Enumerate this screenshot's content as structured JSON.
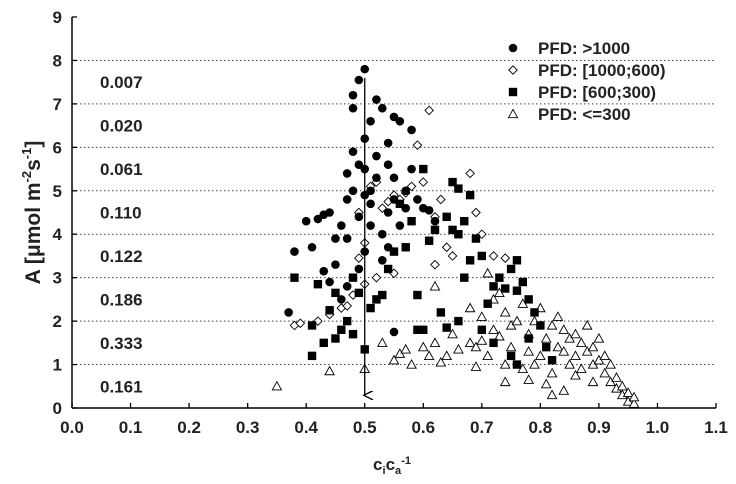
{
  "chart_data": {
    "type": "scatter",
    "title": "",
    "xlabel": {
      "base": "c",
      "sub1": "i",
      "mid": "c",
      "sub2": "a",
      "sup": "-1"
    },
    "ylabel": {
      "main": "A [μmol m",
      "sup1": "-2",
      "mid": "s",
      "sup2": "-1",
      "end": "]"
    },
    "xlim": [
      0.0,
      1.1
    ],
    "ylim": [
      0,
      9
    ],
    "x_ticks": [
      "0.0",
      "0.1",
      "0.2",
      "0.3",
      "0.4",
      "0.5",
      "0.6",
      "0.7",
      "0.8",
      "0.9",
      "1.0",
      "1.1"
    ],
    "y_ticks": [
      "0",
      "1",
      "2",
      "3",
      "4",
      "5",
      "6",
      "7",
      "8",
      "9"
    ],
    "grid": "horizontal dotted",
    "legend_position": "top-right",
    "band_labels": [
      {
        "y": 7.5,
        "text": "0.007"
      },
      {
        "y": 6.5,
        "text": "0.020"
      },
      {
        "y": 5.5,
        "text": "0.061"
      },
      {
        "y": 4.5,
        "text": "0.110"
      },
      {
        "y": 3.5,
        "text": "0.122"
      },
      {
        "y": 2.5,
        "text": "0.186"
      },
      {
        "y": 1.5,
        "text": "0.333"
      },
      {
        "y": 0.5,
        "text": "0.161"
      }
    ],
    "arrow": {
      "x": 0.5,
      "from_y": 7.6,
      "to_y": 0.2
    },
    "series": [
      {
        "name": "PFD: >1000",
        "marker": "filled-circle",
        "points": [
          [
            0.37,
            2.2
          ],
          [
            0.38,
            3.6
          ],
          [
            0.4,
            4.3
          ],
          [
            0.41,
            3.7
          ],
          [
            0.42,
            4.35
          ],
          [
            0.43,
            4.45
          ],
          [
            0.43,
            3.15
          ],
          [
            0.44,
            2.9
          ],
          [
            0.44,
            4.5
          ],
          [
            0.45,
            3.9
          ],
          [
            0.45,
            3.3
          ],
          [
            0.46,
            4.2
          ],
          [
            0.46,
            2.5
          ],
          [
            0.47,
            4.8
          ],
          [
            0.47,
            3.9
          ],
          [
            0.47,
            2.8
          ],
          [
            0.47,
            5.4
          ],
          [
            0.48,
            5.9
          ],
          [
            0.48,
            5.0
          ],
          [
            0.48,
            7.2
          ],
          [
            0.48,
            6.9
          ],
          [
            0.49,
            5.6
          ],
          [
            0.49,
            4.4
          ],
          [
            0.49,
            3.2
          ],
          [
            0.49,
            7.55
          ],
          [
            0.5,
            7.8
          ],
          [
            0.5,
            6.2
          ],
          [
            0.5,
            5.5
          ],
          [
            0.5,
            4.9
          ],
          [
            0.5,
            3.6
          ],
          [
            0.51,
            5.0
          ],
          [
            0.51,
            6.6
          ],
          [
            0.51,
            4.7
          ],
          [
            0.51,
            4.2
          ],
          [
            0.52,
            7.1
          ],
          [
            0.52,
            5.3
          ],
          [
            0.52,
            5.8
          ],
          [
            0.53,
            6.9
          ],
          [
            0.53,
            4.0
          ],
          [
            0.53,
            3.4
          ],
          [
            0.54,
            6.1
          ],
          [
            0.54,
            5.6
          ],
          [
            0.54,
            4.5
          ],
          [
            0.54,
            3.7
          ],
          [
            0.55,
            6.7
          ],
          [
            0.55,
            5.3
          ],
          [
            0.55,
            4.8
          ],
          [
            0.56,
            6.6
          ],
          [
            0.56,
            4.2
          ],
          [
            0.57,
            5.0
          ],
          [
            0.57,
            4.6
          ],
          [
            0.58,
            6.4
          ],
          [
            0.58,
            5.5
          ],
          [
            0.59,
            4.8
          ],
          [
            0.6,
            4.6
          ],
          [
            0.61,
            4.55
          ],
          [
            0.62,
            4.3
          ],
          [
            0.55,
            1.75
          ]
        ]
      },
      {
        "name": "PFD: [1000;600)",
        "marker": "open-diamond",
        "points": [
          [
            0.38,
            1.9
          ],
          [
            0.39,
            1.95
          ],
          [
            0.42,
            2.0
          ],
          [
            0.44,
            2.15
          ],
          [
            0.46,
            2.3
          ],
          [
            0.47,
            2.35
          ],
          [
            0.48,
            2.6
          ],
          [
            0.49,
            3.45
          ],
          [
            0.49,
            4.5
          ],
          [
            0.5,
            3.8
          ],
          [
            0.51,
            5.1
          ],
          [
            0.52,
            5.2
          ],
          [
            0.53,
            4.6
          ],
          [
            0.54,
            4.75
          ],
          [
            0.55,
            4.9
          ],
          [
            0.56,
            4.8
          ],
          [
            0.57,
            4.95
          ],
          [
            0.58,
            5.1
          ],
          [
            0.59,
            6.05
          ],
          [
            0.6,
            5.2
          ],
          [
            0.61,
            6.85
          ],
          [
            0.62,
            4.4
          ],
          [
            0.62,
            3.3
          ],
          [
            0.63,
            4.8
          ],
          [
            0.64,
            3.7
          ],
          [
            0.65,
            3.5
          ],
          [
            0.68,
            5.4
          ],
          [
            0.69,
            4.5
          ],
          [
            0.7,
            4.0
          ],
          [
            0.72,
            3.5
          ],
          [
            0.74,
            3.45
          ],
          [
            0.55,
            3.1
          ],
          [
            0.5,
            2.85
          ],
          [
            0.52,
            3.0
          ]
        ]
      },
      {
        "name": "PFD: [600;300)",
        "marker": "filled-square",
        "points": [
          [
            0.38,
            3.0
          ],
          [
            0.41,
            1.9
          ],
          [
            0.41,
            1.2
          ],
          [
            0.42,
            2.85
          ],
          [
            0.43,
            1.5
          ],
          [
            0.44,
            2.25
          ],
          [
            0.45,
            1.6
          ],
          [
            0.45,
            2.65
          ],
          [
            0.46,
            1.8
          ],
          [
            0.47,
            2.0
          ],
          [
            0.48,
            1.7
          ],
          [
            0.48,
            3.0
          ],
          [
            0.49,
            2.65
          ],
          [
            0.5,
            1.35
          ],
          [
            0.51,
            2.3
          ],
          [
            0.52,
            2.5
          ],
          [
            0.53,
            2.6
          ],
          [
            0.54,
            3.2
          ],
          [
            0.55,
            3.6
          ],
          [
            0.56,
            4.7
          ],
          [
            0.57,
            3.7
          ],
          [
            0.58,
            4.3
          ],
          [
            0.59,
            2.6
          ],
          [
            0.6,
            5.5
          ],
          [
            0.6,
            1.8
          ],
          [
            0.61,
            3.85
          ],
          [
            0.62,
            4.1
          ],
          [
            0.63,
            2.2
          ],
          [
            0.64,
            1.85
          ],
          [
            0.64,
            4.4
          ],
          [
            0.65,
            4.1
          ],
          [
            0.65,
            5.2
          ],
          [
            0.66,
            4.0
          ],
          [
            0.66,
            5.05
          ],
          [
            0.67,
            4.3
          ],
          [
            0.67,
            3.0
          ],
          [
            0.68,
            4.9
          ],
          [
            0.68,
            3.4
          ],
          [
            0.69,
            3.9
          ],
          [
            0.7,
            3.5
          ],
          [
            0.7,
            1.8
          ],
          [
            0.71,
            2.4
          ],
          [
            0.72,
            2.8
          ],
          [
            0.73,
            3.0
          ],
          [
            0.74,
            2.75
          ],
          [
            0.75,
            3.2
          ],
          [
            0.76,
            3.4
          ],
          [
            0.76,
            2.7
          ],
          [
            0.77,
            2.9
          ],
          [
            0.78,
            1.6
          ],
          [
            0.78,
            2.5
          ],
          [
            0.79,
            2.2
          ],
          [
            0.8,
            1.9
          ],
          [
            0.81,
            1.4
          ],
          [
            0.82,
            1.1
          ],
          [
            0.75,
            1.2
          ],
          [
            0.76,
            1.0
          ],
          [
            0.66,
            2.0
          ],
          [
            0.72,
            1.5
          ],
          [
            0.59,
            1.8
          ]
        ]
      },
      {
        "name": "PFD: <=300",
        "marker": "open-triangle",
        "points": [
          [
            0.35,
            0.5
          ],
          [
            0.44,
            0.85
          ],
          [
            0.5,
            0.9
          ],
          [
            0.53,
            1.5
          ],
          [
            0.55,
            1.1
          ],
          [
            0.56,
            1.25
          ],
          [
            0.57,
            1.35
          ],
          [
            0.58,
            1.0
          ],
          [
            0.6,
            1.4
          ],
          [
            0.61,
            1.2
          ],
          [
            0.62,
            1.5
          ],
          [
            0.63,
            1.05
          ],
          [
            0.64,
            1.2
          ],
          [
            0.66,
            1.35
          ],
          [
            0.68,
            1.5
          ],
          [
            0.69,
            1.4
          ],
          [
            0.7,
            1.55
          ],
          [
            0.7,
            2.1
          ],
          [
            0.71,
            1.2
          ],
          [
            0.72,
            1.8
          ],
          [
            0.72,
            2.5
          ],
          [
            0.73,
            1.65
          ],
          [
            0.74,
            1.0
          ],
          [
            0.74,
            2.2
          ],
          [
            0.75,
            1.4
          ],
          [
            0.75,
            1.9
          ],
          [
            0.76,
            2.0
          ],
          [
            0.77,
            2.4
          ],
          [
            0.77,
            0.9
          ],
          [
            0.78,
            1.3
          ],
          [
            0.78,
            1.7
          ],
          [
            0.79,
            2.0
          ],
          [
            0.8,
            1.2
          ],
          [
            0.8,
            2.3
          ],
          [
            0.81,
            1.6
          ],
          [
            0.82,
            1.9
          ],
          [
            0.82,
            0.8
          ],
          [
            0.83,
            1.4
          ],
          [
            0.83,
            2.1
          ],
          [
            0.84,
            1.3
          ],
          [
            0.84,
            1.8
          ],
          [
            0.85,
            1.0
          ],
          [
            0.85,
            1.6
          ],
          [
            0.86,
            1.2
          ],
          [
            0.86,
            1.7
          ],
          [
            0.87,
            1.5
          ],
          [
            0.87,
            0.9
          ],
          [
            0.88,
            1.3
          ],
          [
            0.88,
            1.9
          ],
          [
            0.89,
            1.0
          ],
          [
            0.89,
            1.4
          ],
          [
            0.9,
            1.1
          ],
          [
            0.9,
            1.6
          ],
          [
            0.91,
            0.8
          ],
          [
            0.91,
            1.2
          ],
          [
            0.92,
            0.6
          ],
          [
            0.92,
            1.0
          ],
          [
            0.93,
            0.7
          ],
          [
            0.93,
            0.45
          ],
          [
            0.94,
            0.5
          ],
          [
            0.94,
            0.3
          ],
          [
            0.95,
            0.35
          ],
          [
            0.95,
            0.15
          ],
          [
            0.96,
            0.1
          ],
          [
            0.96,
            0.25
          ],
          [
            0.78,
            0.65
          ],
          [
            0.81,
            0.55
          ],
          [
            0.84,
            0.4
          ],
          [
            0.74,
            0.6
          ],
          [
            0.69,
            0.95
          ],
          [
            0.65,
            1.7
          ],
          [
            0.62,
            2.8
          ],
          [
            0.73,
            2.65
          ],
          [
            0.71,
            3.1
          ],
          [
            0.68,
            2.3
          ],
          [
            0.79,
            1.0
          ],
          [
            0.86,
            0.75
          ],
          [
            0.89,
            0.6
          ],
          [
            0.82,
            0.3
          ]
        ]
      }
    ]
  }
}
